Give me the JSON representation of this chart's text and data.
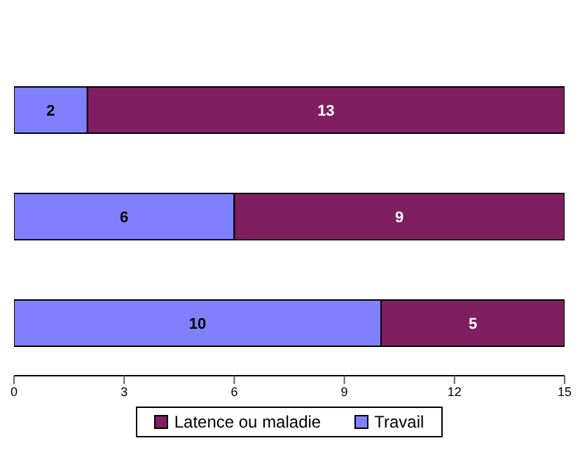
{
  "chart_data": {
    "type": "bar",
    "orientation": "horizontal",
    "stacked": true,
    "categories": [
      null,
      null,
      null
    ],
    "series": [
      {
        "name": "Travail",
        "color": "#8080ff",
        "values": [
          2,
          6,
          10
        ]
      },
      {
        "name": "Latence ou maladie",
        "color": "#7f1f5f",
        "values": [
          13,
          9,
          5
        ]
      }
    ],
    "xlim": [
      0,
      15
    ],
    "xticks": [
      0,
      3,
      6,
      9,
      12,
      15
    ],
    "tick_labels": "x",
    "grid": false,
    "legend": "bottom",
    "data_labels": true
  }
}
